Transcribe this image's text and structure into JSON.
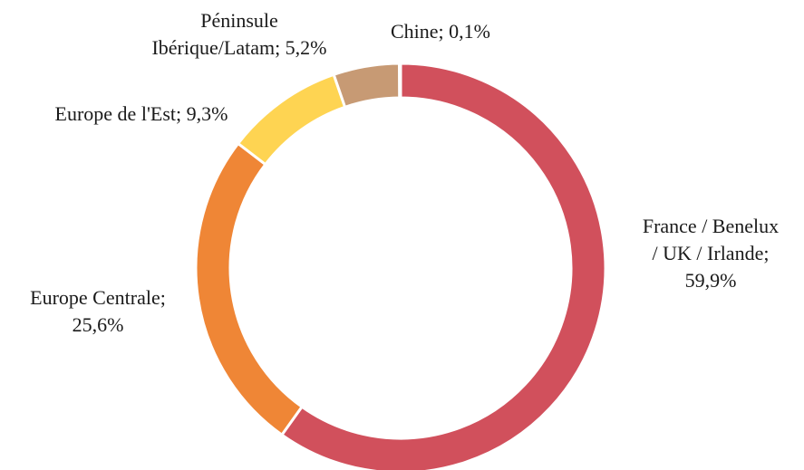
{
  "chart_data": {
    "type": "pie",
    "variant": "donut",
    "title": "",
    "slices": [
      {
        "label_lines": [
          "France / Benelux",
          "/ UK / Irlande;",
          "59,9%"
        ],
        "category": "France / Benelux / UK / Irlande",
        "value": 59.9,
        "color": "#d1505c"
      },
      {
        "label_lines": [
          "Europe Centrale;",
          "25,6%"
        ],
        "category": "Europe Centrale",
        "value": 25.6,
        "color": "#ef8636"
      },
      {
        "label_lines": [
          "Europe de l'Est; 9,3%"
        ],
        "category": "Europe de l'Est",
        "value": 9.3,
        "color": "#fed452"
      },
      {
        "label_lines": [
          "Péninsule",
          "Ibérique/Latam; 5,2%"
        ],
        "category": "Péninsule Ibérique/Latam",
        "value": 5.2,
        "color": "#c79a74"
      },
      {
        "label_lines": [
          "Chine; 0,1%"
        ],
        "category": "Chine",
        "value": 0.1,
        "color": "#8c8c8c"
      }
    ],
    "start": "top",
    "direction": "clockwise",
    "legend": "none"
  }
}
